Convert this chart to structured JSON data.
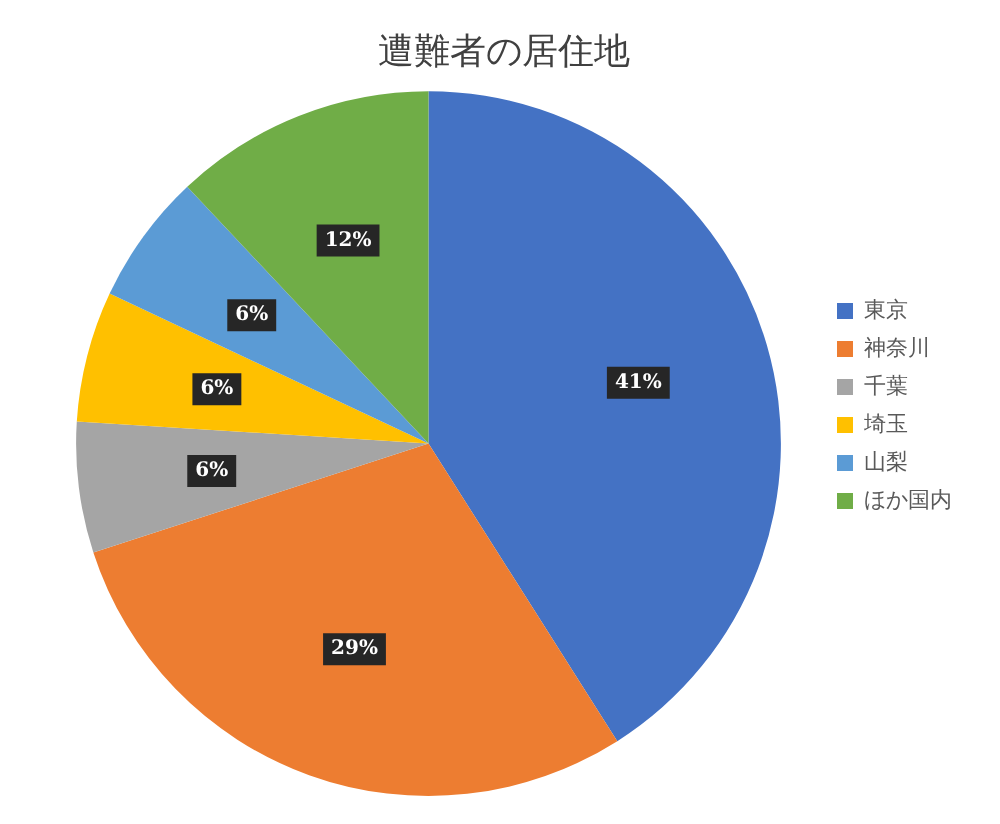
{
  "chart_data": {
    "type": "pie",
    "title": "遭難者の居住地",
    "categories": [
      "東京",
      "神奈川",
      "千葉",
      "埼玉",
      "山梨",
      "ほか国内"
    ],
    "values": [
      41,
      29,
      6,
      6,
      6,
      12
    ],
    "colors": [
      "#4472c4",
      "#ed7d31",
      "#a5a5a5",
      "#ffc000",
      "#5b9bd5",
      "#70ad47"
    ],
    "value_labels": [
      "41%",
      "29%",
      "6%",
      "6%",
      "6%",
      "12%"
    ],
    "legend": "right"
  }
}
